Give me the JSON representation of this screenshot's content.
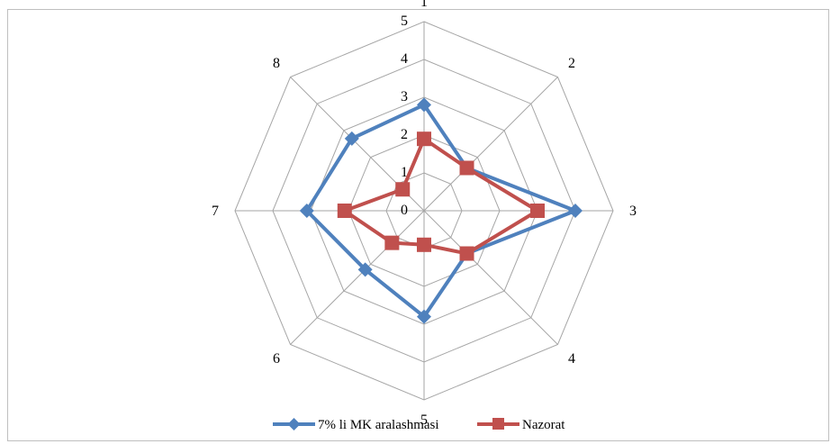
{
  "chart_data": {
    "type": "radar",
    "categories": [
      "1",
      "2",
      "3",
      "4",
      "5",
      "6",
      "7",
      "8"
    ],
    "rlim": [
      0,
      5
    ],
    "ticks": [
      "0",
      "1",
      "2",
      "3",
      "4",
      "5"
    ],
    "grid": true,
    "legend_position": "bottom",
    "series": [
      {
        "name": "7% li MK aralashmasi",
        "values": [
          2.8,
          1.6,
          4.0,
          1.6,
          2.8,
          2.2,
          3.1,
          2.7
        ],
        "color": "#4f81bd",
        "marker": "diamond"
      },
      {
        "name": "Nazorat",
        "values": [
          1.9,
          1.6,
          3.0,
          1.6,
          0.9,
          1.2,
          2.1,
          0.8
        ],
        "color": "#c0504d",
        "marker": "square"
      }
    ]
  }
}
